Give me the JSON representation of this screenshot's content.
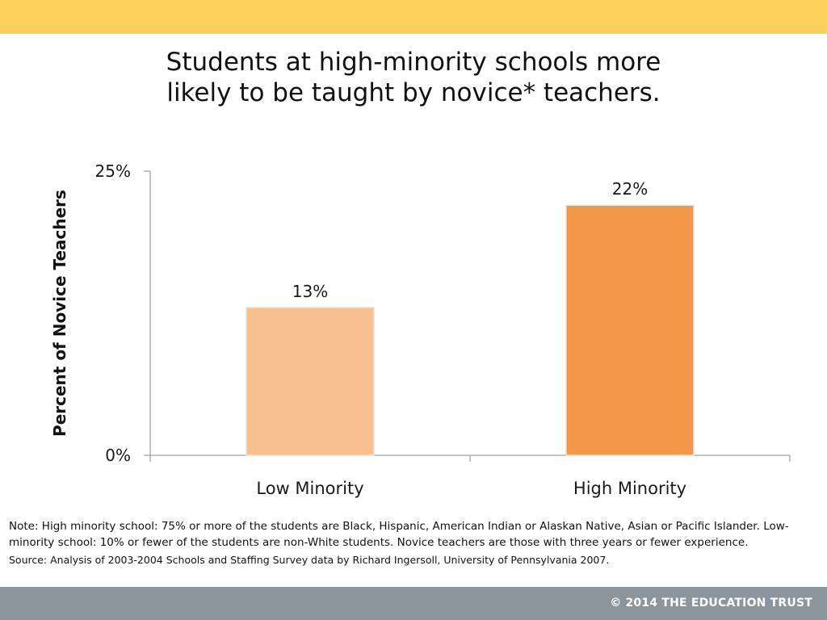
{
  "header": {
    "title_line1": "Students at high-minority schools more",
    "title_line2": "likely to be taught by novice* teachers."
  },
  "colors": {
    "top_band": "#FDD15A",
    "footer": "#8C959C",
    "low_bar": "#F9C08F",
    "high_bar": "#F39748",
    "axis": "#8A8A8A"
  },
  "chart_data": {
    "type": "bar",
    "categories": [
      "Low Minority",
      "High Minority"
    ],
    "values": [
      13,
      22
    ],
    "data_labels": [
      "13%",
      "22%"
    ],
    "ylabel": "Percent of Novice Teachers",
    "ylim": [
      0,
      25
    ],
    "ytick_labels": [
      "25%",
      "0%"
    ],
    "ytick_values": [
      25,
      0
    ],
    "grid": false,
    "legend": "none"
  },
  "notes": {
    "note": "Note: High minority school: 75% or more of the students are Black, Hispanic, American Indian or Alaskan Native, Asian or Pacific Islander. Low-minority school: 10% or fewer of the students are non-White students.  Novice teachers are those with three years or fewer experience.",
    "source": "Source:  Analysis of 2003-2004 Schools and Staffing Survey data by Richard Ingersoll, University of Pennsylvania 2007."
  },
  "footer": {
    "text": "© 2014 THE EDUCATION TRUST"
  }
}
